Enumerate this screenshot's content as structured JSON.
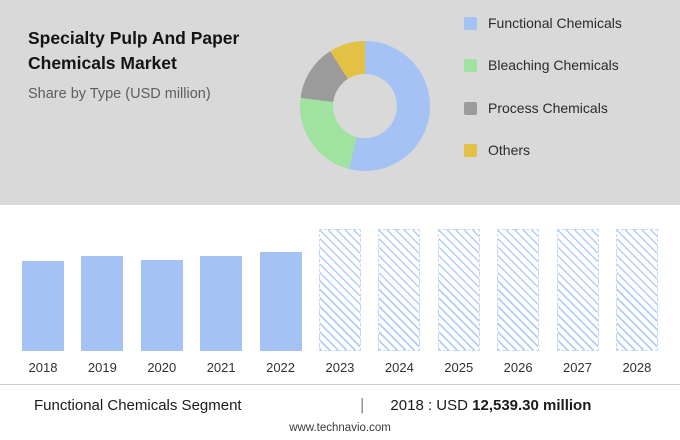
{
  "header": {
    "title": "Specialty Pulp And Paper Chemicals Market",
    "subtitle": "Share by Type (USD million)"
  },
  "chart_data": [
    {
      "type": "pie",
      "donut": true,
      "title": "Share by Type (USD million)",
      "labels": [
        "Functional Chemicals",
        "Bleaching Chemicals",
        "Process Chemicals",
        "Others"
      ],
      "values": [
        54,
        23,
        14,
        9
      ],
      "colors": [
        "#a4c2f4",
        "#a0e3a0",
        "#9b9b9b",
        "#e2c144"
      ],
      "legend_position": "right"
    },
    {
      "type": "bar",
      "categories": [
        "2018",
        "2019",
        "2020",
        "2021",
        "2022",
        "2023",
        "2024",
        "2025",
        "2026",
        "2027",
        "2028"
      ],
      "values": [
        12539.3,
        13250,
        12700,
        13250,
        13800,
        null,
        null,
        null,
        null,
        null,
        null
      ],
      "forecast_categories": [
        "2023",
        "2024",
        "2025",
        "2026",
        "2027",
        "2028"
      ],
      "bar_color": "#a4c2f4",
      "ylabel": "USD million",
      "ylim": [
        0,
        17000
      ],
      "grid": false
    }
  ],
  "footer": {
    "segment_label": "Functional Chemicals Segment",
    "separator": "|",
    "stat_prefix": "2018 : USD",
    "stat_value": "12,539.30 million",
    "website": "www.technavio.com"
  }
}
